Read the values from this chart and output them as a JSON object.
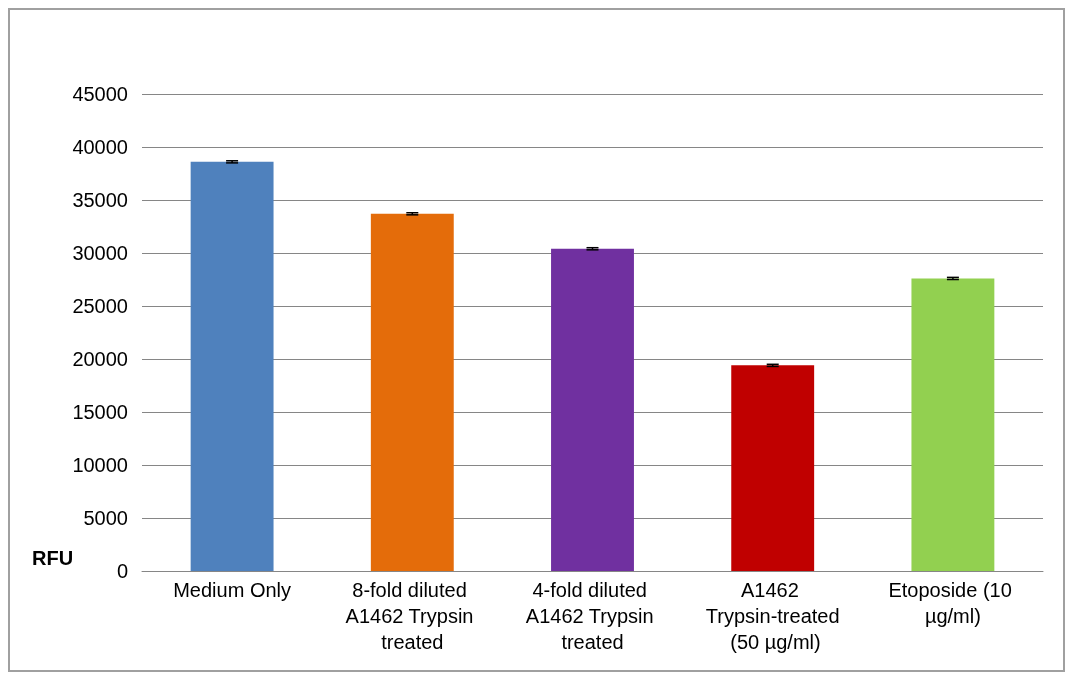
{
  "chart_data": {
    "type": "bar",
    "ylabel": "RFU",
    "categories": [
      "Medium Only",
      "8-fold diluted A1462 Trypsin treated",
      "4-fold diluted A1462 Trypsin treated",
      "A1462 Trypsin-treated (50 µg/ml)",
      "Etoposide (10 µg/ml)"
    ],
    "values": [
      38600,
      33700,
      30400,
      19400,
      27600
    ],
    "colors": [
      "#4f81bd",
      "#e46c0a",
      "#7030a0",
      "#c00000",
      "#92d050"
    ],
    "errors": [
      100,
      100,
      100,
      100,
      100
    ],
    "ylim": [
      0,
      45000
    ],
    "yticks": [
      0,
      5000,
      10000,
      15000,
      20000,
      25000,
      30000,
      35000,
      40000,
      45000
    ],
    "grid": "y"
  }
}
